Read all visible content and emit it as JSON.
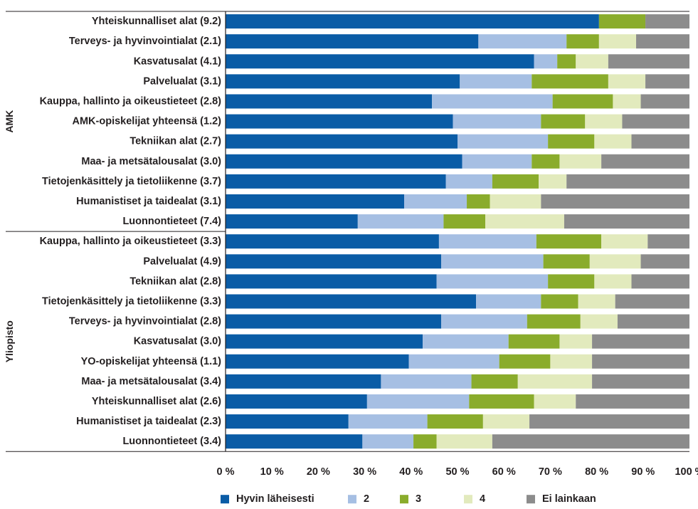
{
  "chart_data": {
    "type": "bar",
    "orientation": "horizontal",
    "stacked": true,
    "xlim": [
      0,
      100
    ],
    "x_ticks": [
      "0 %",
      "10 %",
      "20 %",
      "30 %",
      "40 %",
      "50 %",
      "60 %",
      "70 %",
      "80 %",
      "90 %",
      "100 %"
    ],
    "grid": false,
    "legend_position": "bottom",
    "legend": [
      "Hyvin läheisesti",
      "2",
      "3",
      "4",
      "Ei lainkaan"
    ],
    "colors": [
      "#0a5ca6",
      "#a6bfe3",
      "#8aac2c",
      "#e2eabd",
      "#8c8c8c"
    ],
    "groups": [
      {
        "name": "AMK",
        "categories": [
          "Yhteiskunnalliset alat (9.2)",
          "Terveys- ja hyvinvointialat (2.1)",
          "Kasvatusalat (4.1)",
          "Palvelualat (3.1)",
          "Kauppa, hallinto ja oikeustieteet (2.8)",
          "AMK-opiskelijat yhteensä (1.2)",
          "Tekniikan alat (2.7)",
          "Maa- ja metsätalousalat (3.0)",
          "Tietojenkäsittely ja tietoliikenne (3.7)",
          "Humanistiset ja taidealat (3.1)",
          "Luonnontieteet (7.4)"
        ],
        "values": [
          [
            80.5,
            0,
            10,
            0,
            9.5
          ],
          [
            54.5,
            19,
            7,
            8,
            11.5
          ],
          [
            66.5,
            5,
            4,
            7,
            17.5
          ],
          [
            50.5,
            15.5,
            16.5,
            8,
            9.5
          ],
          [
            44.5,
            26,
            13,
            6,
            10.5
          ],
          [
            49,
            19,
            9.5,
            8,
            14.5
          ],
          [
            50,
            19.5,
            10,
            8,
            12.5
          ],
          [
            51,
            15,
            6,
            9,
            19
          ],
          [
            47.5,
            10,
            10,
            6,
            26.5
          ],
          [
            38.5,
            13.5,
            5,
            11,
            32
          ],
          [
            28.5,
            18.5,
            9,
            17,
            27
          ]
        ]
      },
      {
        "name": "Yliopisto",
        "categories": [
          "Kauppa, hallinto ja oikeustieteet (3.3)",
          "Palvelualat (4.9)",
          "Tekniikan alat (2.8)",
          "Tietojenkäsittely ja tietoliikenne (3.3)",
          "Terveys- ja hyvinvointialat (2.8)",
          "Kasvatusalat (3.0)",
          "YO-opiskelijat yhteensä (1.1)",
          "Maa- ja metsätalousalat (3.4)",
          "Yhteiskunnalliset alat (2.6)",
          "Humanistiset ja taidealat (2.3)",
          "Luonnontieteet (3.4)"
        ],
        "values": [
          [
            46,
            21,
            14,
            10,
            9
          ],
          [
            46.5,
            22,
            10,
            11,
            10.5
          ],
          [
            45.5,
            24,
            10,
            8,
            12.5
          ],
          [
            54,
            14,
            8,
            8,
            16
          ],
          [
            46.5,
            18.5,
            11.5,
            8,
            15.5
          ],
          [
            42.5,
            18.5,
            11,
            7,
            21
          ],
          [
            39.5,
            19.5,
            11,
            9,
            21
          ],
          [
            33.5,
            19.5,
            10,
            16,
            21
          ],
          [
            30.5,
            22,
            14,
            9,
            24.5
          ],
          [
            26.5,
            17,
            12,
            10,
            34.5
          ],
          [
            29.5,
            11,
            5,
            12,
            42.5
          ]
        ]
      }
    ]
  }
}
